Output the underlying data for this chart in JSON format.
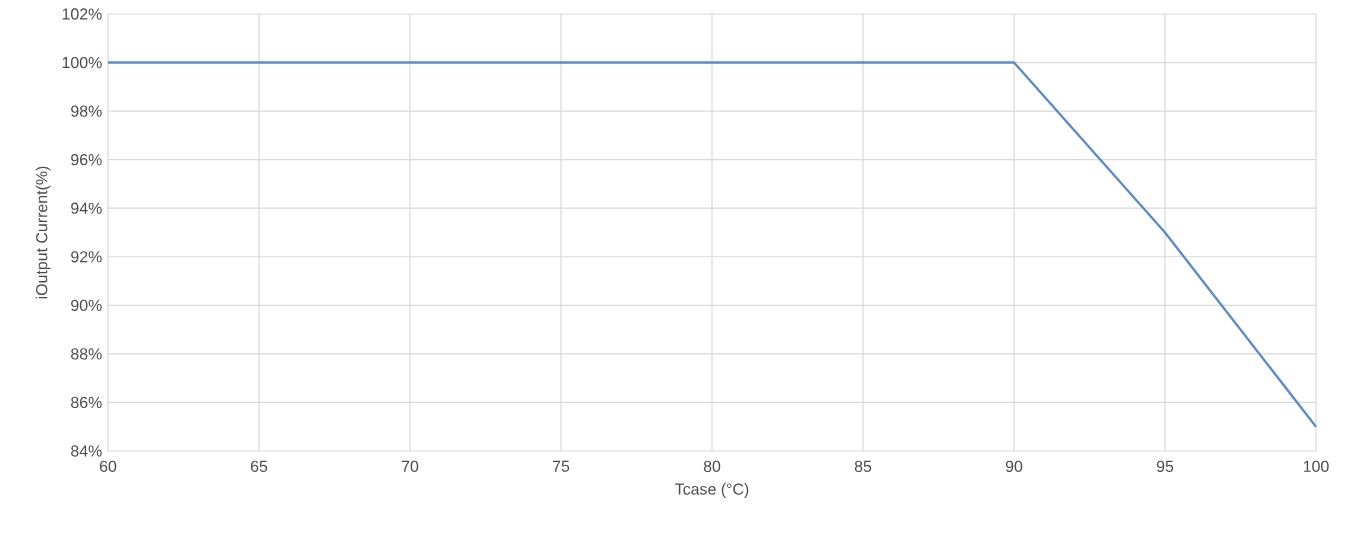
{
  "chart_data": {
    "type": "line",
    "xlabel": "Tcase (°C)",
    "ylabel": "iOutput Current(%)",
    "x": [
      60,
      90,
      95,
      100
    ],
    "series": [
      {
        "color": "#5b8bc9",
        "values": [
          100,
          100,
          93,
          85
        ]
      }
    ],
    "xlim": [
      60,
      100
    ],
    "ylim": [
      84,
      102
    ],
    "xticks": [
      60,
      65,
      70,
      75,
      80,
      85,
      90,
      95,
      100
    ],
    "yticks": [
      {
        "value": 84,
        "label": "84%"
      },
      {
        "value": 86,
        "label": "86%"
      },
      {
        "value": 88,
        "label": "88%"
      },
      {
        "value": 90,
        "label": "90%"
      },
      {
        "value": 92,
        "label": "92%"
      },
      {
        "value": 94,
        "label": "94%"
      },
      {
        "value": 96,
        "label": "96%"
      },
      {
        "value": 98,
        "label": "98%"
      },
      {
        "value": 100,
        "label": "100%"
      },
      {
        "value": 102,
        "label": "102%"
      }
    ],
    "grid": true,
    "marker": "none",
    "line_style": "solid"
  }
}
